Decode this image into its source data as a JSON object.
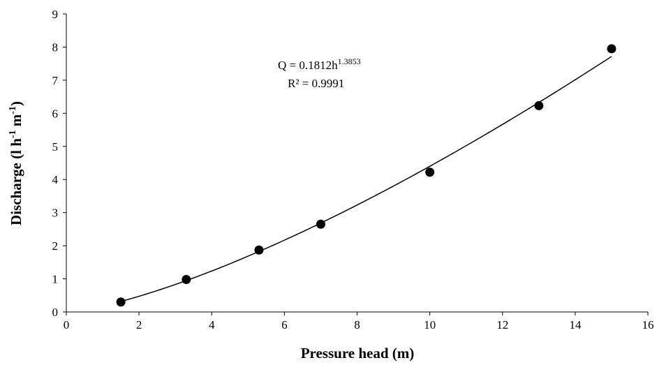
{
  "chart_data": {
    "type": "scatter",
    "title": "",
    "xlabel": "Pressure head (m)",
    "ylabel": {
      "main": "Discharge (l h",
      "sup1": "-1",
      "mid": " m",
      "sup2": "-1",
      "end": ")"
    },
    "xlim": [
      0,
      16
    ],
    "ylim": [
      0,
      9
    ],
    "xticks": [
      "0",
      "2",
      "4",
      "6",
      "8",
      "10",
      "12",
      "14",
      "16"
    ],
    "yticks": [
      "0",
      "1",
      "2",
      "3",
      "4",
      "5",
      "6",
      "7",
      "8",
      "9"
    ],
    "grid": false,
    "legend": "none",
    "series": [
      {
        "x": [
          1.5,
          3.3,
          5.3,
          7.0,
          10.0,
          13.0,
          15.0
        ],
        "y": [
          0.3,
          0.98,
          1.87,
          2.65,
          4.22,
          6.23,
          7.95
        ]
      }
    ],
    "trendline": {
      "type": "power",
      "coefficient": 0.1812,
      "exponent": 1.3853,
      "x_range": [
        1.5,
        15.0
      ]
    },
    "annotation": {
      "equation_base": "Q = 0.1812h",
      "equation_exponent": "1.3853",
      "r_squared": "R² = 0.9991"
    },
    "colors": {
      "marker": "#000000",
      "line": "#000000",
      "axis": "#000000"
    }
  }
}
